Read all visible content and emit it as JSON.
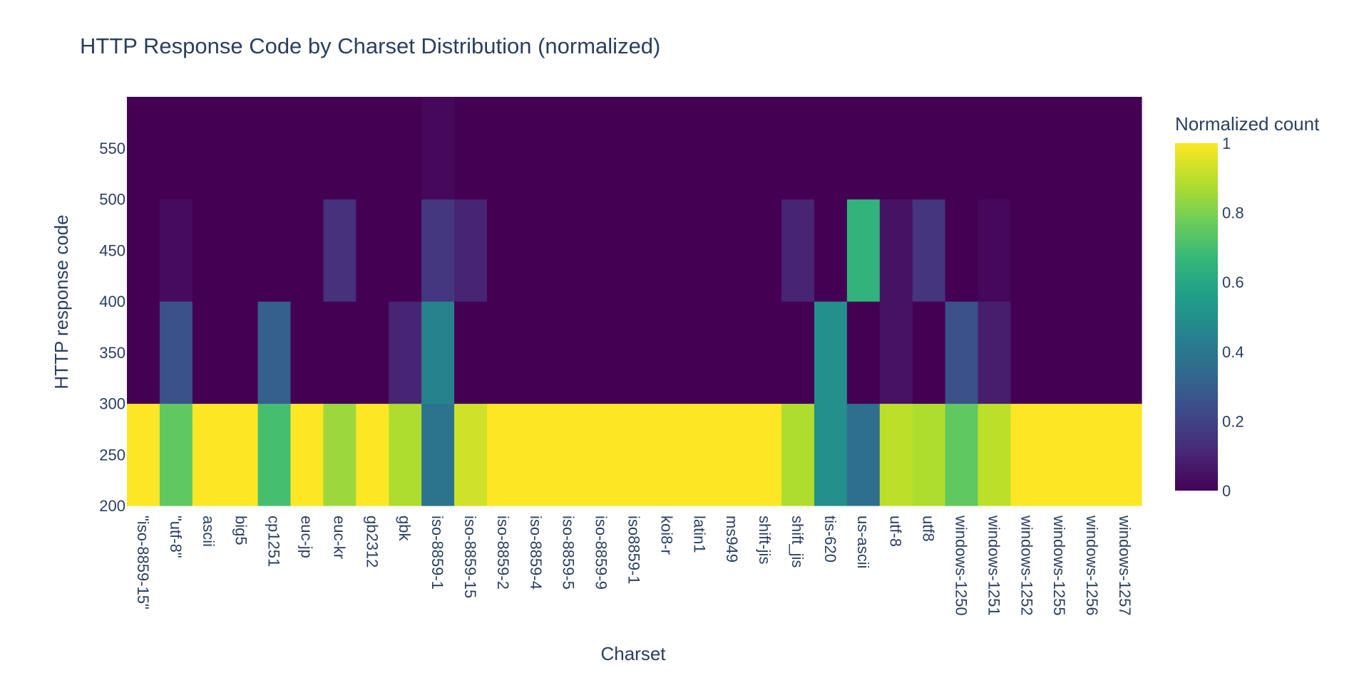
{
  "chart_data": {
    "type": "heatmap",
    "title": "HTTP Response Code by Charset Distribution (normalized)",
    "xlabel": "Charset",
    "ylabel": "HTTP response code",
    "x": [
      "\"iso-8859-15\"",
      "\"utf-8\"",
      "ascii",
      "big5",
      "cp1251",
      "euc-jp",
      "euc-kr",
      "gb2312",
      "gbk",
      "iso-8859-1",
      "iso-8859-15",
      "iso-8859-2",
      "iso-8859-4",
      "iso-8859-5",
      "iso-8859-9",
      "iso8859-1",
      "koi8-r",
      "latin1",
      "ms949",
      "shift-jis",
      "shift_jis",
      "tis-620",
      "us-ascii",
      "utf-8",
      "utf8",
      "windows-1250",
      "windows-1251",
      "windows-1252",
      "windows-1255",
      "windows-1256",
      "windows-1257"
    ],
    "y": [
      200,
      300,
      400,
      500,
      600
    ],
    "yticks": [
      200,
      250,
      300,
      350,
      400,
      450,
      500,
      550
    ],
    "ylim": [
      200,
      600
    ],
    "z": [
      [
        1,
        0.75,
        1,
        1,
        0.7,
        1,
        0.85,
        1,
        0.88,
        0.38,
        0.93,
        1,
        1,
        1,
        1,
        1,
        1,
        1,
        1,
        1,
        0.88,
        0.5,
        0.36,
        0.9,
        0.88,
        0.75,
        0.9,
        1,
        1,
        1,
        1
      ],
      [
        0,
        0.25,
        0,
        0,
        0.3,
        0,
        0,
        0,
        0.1,
        0.45,
        0,
        0,
        0,
        0,
        0,
        0,
        0,
        0,
        0,
        0,
        0,
        0.5,
        0,
        0.05,
        0,
        0.25,
        0.08,
        0,
        0,
        0,
        0
      ],
      [
        0,
        0.03,
        0,
        0,
        0,
        0,
        0.14,
        0,
        0,
        0.16,
        0.1,
        0,
        0,
        0,
        0,
        0,
        0,
        0,
        0,
        0,
        0.1,
        0,
        0.65,
        0.05,
        0.15,
        0,
        0.02,
        0,
        0,
        0,
        0
      ],
      [
        0,
        0,
        0,
        0,
        0,
        0,
        0,
        0,
        0,
        0.02,
        0,
        0,
        0,
        0,
        0,
        0,
        0,
        0,
        0,
        0,
        0,
        0,
        0,
        0,
        0,
        0,
        0,
        0,
        0,
        0,
        0
      ]
    ],
    "colorscale": "Viridis",
    "colorscale_stops": [
      "#440154",
      "#482878",
      "#3e4989",
      "#31688e",
      "#26828e",
      "#1f9e89",
      "#35b779",
      "#6ece58",
      "#b5de2b",
      "#fde725"
    ],
    "colorbar": {
      "title": "Normalized count",
      "range": [
        0,
        1
      ],
      "ticks": [
        0,
        0.2,
        0.4,
        0.6,
        0.8,
        1
      ],
      "tick_labels": [
        "0",
        "0.2",
        "0.4",
        "0.6",
        "0.8",
        "1"
      ]
    },
    "grid": false
  }
}
